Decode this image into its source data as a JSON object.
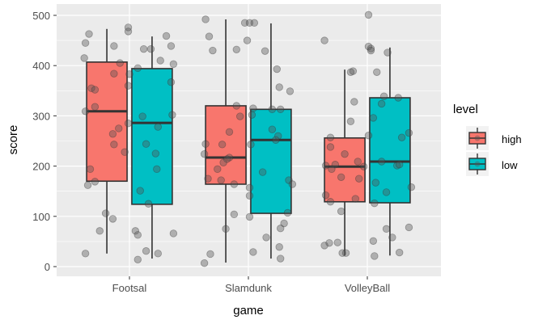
{
  "chart_data": {
    "type": "boxplot",
    "xlabel": "game",
    "ylabel": "score",
    "categories": [
      "Footsal",
      "Slamdunk",
      "VolleyBall"
    ],
    "ylim": [
      -20,
      520
    ],
    "yticks": [
      0,
      100,
      200,
      300,
      400,
      500
    ],
    "grid": true,
    "legend": {
      "title": "level",
      "position": "right",
      "entries": [
        "high",
        "low"
      ]
    },
    "colors": {
      "high": "#f8766d",
      "low": "#00bfc4",
      "panel": "#ebebeb",
      "grid": "#ffffff",
      "points": "#555555"
    },
    "boxes": [
      {
        "game": "Footsal",
        "level": "high",
        "whisker_low": 26,
        "q1": 170,
        "median": 309,
        "q3": 407,
        "whisker_high": 473
      },
      {
        "game": "Footsal",
        "level": "low",
        "whisker_low": 16,
        "q1": 124,
        "median": 286,
        "q3": 394,
        "whisker_high": 458
      },
      {
        "game": "Slamdunk",
        "level": "high",
        "whisker_low": 8,
        "q1": 164,
        "median": 217,
        "q3": 320,
        "whisker_high": 492
      },
      {
        "game": "Slamdunk",
        "level": "low",
        "whisker_low": 16,
        "q1": 106,
        "median": 252,
        "q3": 313,
        "whisker_high": 484
      },
      {
        "game": "VolleyBall",
        "level": "high",
        "whisker_low": 22,
        "q1": 129,
        "median": 199,
        "q3": 256,
        "whisker_high": 392
      },
      {
        "game": "VolleyBall",
        "level": "low",
        "whisker_low": 22,
        "q1": 127,
        "median": 209,
        "q3": 336,
        "whisker_high": 436
      }
    ],
    "points": {
      "Footsal": [
        [
          -0.34,
          463
        ],
        [
          -0.37,
          445
        ],
        [
          -0.38,
          415
        ],
        [
          -0.13,
          439
        ],
        [
          -0.01,
          476
        ],
        [
          -0.01,
          468
        ],
        [
          -0.08,
          405
        ],
        [
          -0.13,
          384
        ],
        [
          0,
          383
        ],
        [
          -0.32,
          355
        ],
        [
          -0.29,
          352
        ],
        [
          -0.01,
          360
        ],
        [
          -0.29,
          318
        ],
        [
          -0.37,
          309
        ],
        [
          -0.09,
          275
        ],
        [
          -0.14,
          264
        ],
        [
          -0.13,
          243
        ],
        [
          -0.01,
          285
        ],
        [
          -0.04,
          228
        ],
        [
          -0.33,
          194
        ],
        [
          -0.35,
          162
        ],
        [
          -0.29,
          169
        ],
        [
          -0.2,
          106
        ],
        [
          -0.14,
          95
        ],
        [
          -0.25,
          71
        ],
        [
          -0.37,
          26
        ],
        [
          0.31,
          459
        ],
        [
          0.12,
          433
        ],
        [
          0.18,
          433
        ],
        [
          0.35,
          439
        ],
        [
          0.26,
          410
        ],
        [
          0.37,
          403
        ],
        [
          0.07,
          395
        ],
        [
          0.35,
          367
        ],
        [
          0.36,
          302
        ],
        [
          0.11,
          299
        ],
        [
          0.24,
          278
        ],
        [
          0.14,
          244
        ],
        [
          0.22,
          225
        ],
        [
          0.23,
          194
        ],
        [
          0.09,
          151
        ],
        [
          0.16,
          125
        ],
        [
          0.05,
          71
        ],
        [
          0.07,
          63
        ],
        [
          0.37,
          66
        ],
        [
          0.14,
          31
        ],
        [
          0.07,
          14
        ],
        [
          0.24,
          26
        ]
      ],
      "Slamdunk": [
        [
          -0.36,
          492
        ],
        [
          -0.33,
          458
        ],
        [
          -0.3,
          430
        ],
        [
          -0.1,
          432
        ],
        [
          -0.03,
          485
        ],
        [
          0.01,
          485
        ],
        [
          0.05,
          485
        ],
        [
          -0.01,
          450
        ],
        [
          0.14,
          429
        ],
        [
          0.24,
          393
        ],
        [
          0.26,
          357
        ],
        [
          0.35,
          349
        ],
        [
          -0.1,
          320
        ],
        [
          -0.07,
          299
        ],
        [
          0.04,
          315
        ],
        [
          0.03,
          302
        ],
        [
          0.2,
          313
        ],
        [
          0.27,
          313
        ],
        [
          -0.16,
          268
        ],
        [
          0.2,
          273
        ],
        [
          0.25,
          260
        ],
        [
          0.23,
          252
        ],
        [
          -0.36,
          244
        ],
        [
          -0.22,
          243
        ],
        [
          0.02,
          243
        ],
        [
          -0.37,
          224
        ],
        [
          -0.16,
          217
        ],
        [
          -0.18,
          214
        ],
        [
          -0.21,
          207
        ],
        [
          -0.26,
          194
        ],
        [
          0.12,
          188
        ],
        [
          -0.34,
          175
        ],
        [
          -0.23,
          172
        ],
        [
          -0.12,
          164
        ],
        [
          0.34,
          172
        ],
        [
          0.37,
          164
        ],
        [
          0.01,
          157
        ],
        [
          0.01,
          141
        ],
        [
          -0.12,
          104
        ],
        [
          0.01,
          99
        ],
        [
          0.33,
          107
        ],
        [
          0.3,
          86
        ],
        [
          0.27,
          76
        ],
        [
          -0.19,
          75
        ],
        [
          0.15,
          58
        ],
        [
          0.26,
          39
        ],
        [
          0.04,
          29
        ],
        [
          0.27,
          16
        ],
        [
          -0.32,
          25
        ],
        [
          -0.37,
          7
        ]
      ],
      "VolleyBall": [
        [
          0.01,
          501
        ],
        [
          -0.36,
          450
        ],
        [
          0.01,
          438
        ],
        [
          0.03,
          434
        ],
        [
          0.03,
          430
        ],
        [
          0.17,
          426
        ],
        [
          -0.12,
          389
        ],
        [
          -0.14,
          387
        ],
        [
          0.08,
          387
        ],
        [
          -0.11,
          328
        ],
        [
          0.14,
          339
        ],
        [
          0.26,
          336
        ],
        [
          0.12,
          324
        ],
        [
          0.05,
          296
        ],
        [
          -0.14,
          289
        ],
        [
          0.01,
          261
        ],
        [
          -0.31,
          257
        ],
        [
          -0.31,
          238
        ],
        [
          0.35,
          266
        ],
        [
          0.29,
          257
        ],
        [
          -0.19,
          224
        ],
        [
          -0.08,
          209
        ],
        [
          0.12,
          209
        ],
        [
          -0.35,
          201
        ],
        [
          -0.27,
          203
        ],
        [
          -0.3,
          194
        ],
        [
          -0.03,
          199
        ],
        [
          0.25,
          201
        ],
        [
          0.27,
          203
        ],
        [
          -0.22,
          178
        ],
        [
          -0.07,
          175
        ],
        [
          0.07,
          167
        ],
        [
          0.37,
          158
        ],
        [
          0.16,
          148
        ],
        [
          -0.35,
          142
        ],
        [
          -0.31,
          129
        ],
        [
          -0.1,
          135
        ],
        [
          0.06,
          126
        ],
        [
          -0.22,
          110
        ],
        [
          0.16,
          75
        ],
        [
          0.35,
          78
        ],
        [
          0.21,
          58
        ],
        [
          0.05,
          51
        ],
        [
          -0.25,
          48
        ],
        [
          -0.32,
          47
        ],
        [
          -0.36,
          42
        ],
        [
          -0.21,
          27
        ],
        [
          -0.18,
          27
        ],
        [
          0.06,
          21
        ],
        [
          0.27,
          28
        ]
      ]
    }
  }
}
